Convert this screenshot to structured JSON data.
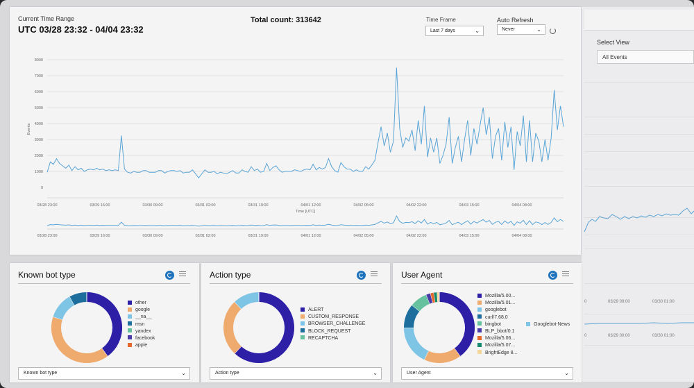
{
  "header": {
    "range_label": "Current Time Range",
    "range_value": "UTC 03/28 23:32 - 04/04 23:32",
    "total_count": "Total count: 313642",
    "timeframe_label": "Time Frame",
    "timeframe_value": "Last 7 days",
    "autorefresh_label": "Auto Refresh",
    "autorefresh_value": "Never"
  },
  "side": {
    "select_view_label": "Select View",
    "select_view_value": "All Events",
    "ticks_a": [
      "0",
      "03/29 09:00",
      "03/30 01:00"
    ],
    "ticks_b": [
      "0",
      "03/29 00:00",
      "03/30 01:00"
    ],
    "extra_legend": "Googlebot-News"
  },
  "chart_data": {
    "type": "line",
    "ylabel": "Events",
    "xlabel": "Time [UTC]",
    "yticks": [
      "8000",
      "7000",
      "6000",
      "5000",
      "4000",
      "3000",
      "2000",
      "1000",
      "0"
    ],
    "ylim": [
      0,
      8000
    ],
    "xticks": [
      "03/28 23:00",
      "03/29 16:00",
      "03/30 09:00",
      "03/31 02:00",
      "03/31 19:00",
      "04/01 12:00",
      "04/02 05:00",
      "04/02 22:00",
      "04/03 15:00",
      "04/04 08:00"
    ],
    "x_count": 168,
    "series": [
      {
        "color": "#5aa5d6",
        "values": [
          950,
          1600,
          1450,
          1800,
          1500,
          1350,
          1200,
          1400,
          1050,
          1300,
          1100,
          1200,
          1000,
          1100,
          1150,
          1100,
          1200,
          1100,
          1150,
          1050,
          1100,
          1050,
          1100,
          1050,
          3250,
          1150,
          950,
          900,
          1000,
          950,
          950,
          1050,
          1050,
          950,
          950,
          950,
          1050,
          1050,
          900,
          1000,
          1050,
          1050,
          1000,
          1050,
          900,
          950,
          950,
          1100,
          850,
          600,
          850,
          1100,
          950,
          950,
          1000,
          850,
          950,
          900,
          850,
          950,
          1050,
          900,
          900,
          1100,
          1000,
          950,
          1300,
          1050,
          1150,
          950,
          1000,
          1500,
          1050,
          1250,
          1350,
          1100,
          950,
          1000,
          1000,
          1000,
          1100,
          1050,
          1000,
          1100,
          1150,
          1100,
          1450,
          1100,
          1250,
          1150,
          1250,
          1800,
          1300,
          1050,
          950,
          1550,
          1300,
          1150,
          1150,
          1000,
          1100,
          1000,
          1000,
          1300,
          1150,
          1050,
          1350,
          1100,
          1000,
          1050,
          1200,
          1150,
          1050,
          1100,
          1100,
          1100,
          1150,
          1300,
          1050,
          950,
          1500,
          1100,
          1250,
          1600,
          1350,
          1150,
          1100,
          1100,
          1050,
          1400,
          1150,
          1000,
          1100,
          950,
          1100,
          1200,
          1050,
          1100,
          1100,
          1100,
          1100,
          1000,
          1050,
          1500,
          1100,
          1250,
          1100,
          1100,
          1300,
          1050,
          1150,
          1050,
          1250,
          1100,
          1050,
          1100,
          1100,
          1050,
          900,
          1050,
          1000,
          1000,
          1050,
          1000,
          1100,
          1000,
          1000,
          1100
        ],
        "late_values": [
          1400,
          1700,
          2800,
          3800,
          2600,
          3400,
          2200,
          2900,
          7500,
          3700,
          2500,
          3100,
          2900,
          3600,
          2300,
          4200,
          2700,
          5100,
          1900,
          3100,
          2200,
          3100,
          1500,
          2000,
          2700,
          4400,
          1500,
          2500,
          3200,
          1600,
          3000,
          4200,
          2000,
          3700,
          2700,
          3900,
          5000,
          3300,
          4400,
          1800,
          3200,
          3700,
          1700,
          4100,
          2500,
          3800,
          1100,
          3500,
          2600,
          4500,
          1600,
          4200,
          1600,
          3400,
          2900,
          1600,
          3000,
          1700,
          3100,
          6100,
          3600,
          5100,
          3800
        ]
      }
    ]
  },
  "cards": [
    {
      "title": "Known bot type",
      "select": "Known bot type",
      "segments": [
        {
          "label": "other",
          "value": 40,
          "color": "#2d20a6"
        },
        {
          "label": "google",
          "value": 40,
          "color": "#efaa6d"
        },
        {
          "label": "__na__",
          "value": 12,
          "color": "#7ec4e5"
        },
        {
          "label": "msn",
          "value": 8,
          "color": "#1d6e9c"
        },
        {
          "label": "yandex",
          "value": 0,
          "color": "#66c29e"
        },
        {
          "label": "facebook",
          "value": 0,
          "color": "#4a3aa8"
        },
        {
          "label": "apple",
          "value": 0,
          "color": "#e5682c"
        }
      ]
    },
    {
      "title": "Action type",
      "select": "Action type",
      "segments": [
        {
          "label": "ALERT",
          "value": 62,
          "color": "#2d20a6"
        },
        {
          "label": "CUSTOM_RESPONSE",
          "value": 26,
          "color": "#efaa6d"
        },
        {
          "label": "BROWSER_CHALLENGE",
          "value": 12,
          "color": "#7ec4e5"
        },
        {
          "label": "BLOCK_REQUEST",
          "value": 0,
          "color": "#1d6e9c"
        },
        {
          "label": "RECAPTCHA",
          "value": 0,
          "color": "#66c29e"
        }
      ]
    },
    {
      "title": "User Agent",
      "select": "User Agent",
      "segments": [
        {
          "label": "Mozilla/5.00...",
          "value": 40,
          "color": "#2d20a6"
        },
        {
          "label": "Mozilla/5.01...",
          "value": 17,
          "color": "#efaa6d"
        },
        {
          "label": "googlebot",
          "value": 18,
          "color": "#7ec4e5"
        },
        {
          "label": "curl/7.68.0",
          "value": 11,
          "color": "#1d6e9c"
        },
        {
          "label": "bingbot",
          "value": 8,
          "color": "#66c29e"
        },
        {
          "label": "BLP_bbot/0.1",
          "value": 2,
          "color": "#4a3aa8"
        },
        {
          "label": "Mozilla/5.06...",
          "value": 1.5,
          "color": "#e5682c"
        },
        {
          "label": "Mozilla/5.07...",
          "value": 1.5,
          "color": "#168a6e"
        },
        {
          "label": "BrightEdge 8...",
          "value": 1,
          "color": "#f3d79a"
        }
      ]
    }
  ]
}
